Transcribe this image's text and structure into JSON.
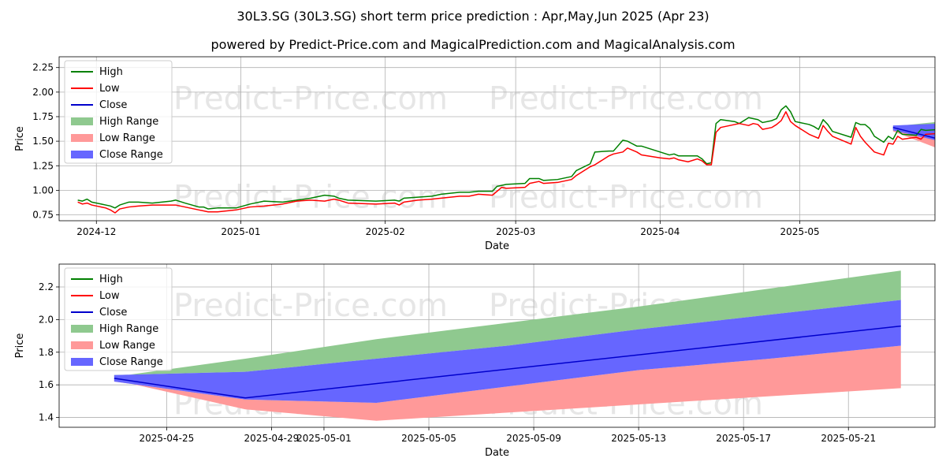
{
  "title_line1": "30L3.SG (30L3.SG) short term price prediction : Apr,May,Jun 2025 (Apr 23)",
  "title_line2": "powered by Predict-Price.com and MagicalPrediction.com and MagicalAnalysis.com",
  "watermark": "Predict-Price.com",
  "colors": {
    "high": "#008000",
    "low": "#ff0000",
    "close": "#0000cc",
    "high_range": "#8fc98f",
    "low_range": "#ff9999",
    "close_range": "#6666ff"
  },
  "chart_data": [
    {
      "type": "line",
      "xlabel": "Date",
      "ylabel": "Price",
      "xlim": [
        "2024-11-23",
        "2025-05-30"
      ],
      "ylim": [
        0.69,
        2.36
      ],
      "grid": true,
      "legend": "top-left",
      "xticks": [
        "2024-12",
        "2025-01",
        "2025-02",
        "2025-03",
        "2025-04",
        "2025-05"
      ],
      "yticks": [
        "0.75",
        "1.00",
        "1.25",
        "1.50",
        "1.75",
        "2.00",
        "2.25"
      ],
      "legend_labels": [
        "High",
        "Low",
        "Close",
        "High Range",
        "Low Range",
        "Close Range"
      ],
      "high": [
        [
          "2024-11-27",
          0.9
        ],
        [
          "2024-11-28",
          0.89
        ],
        [
          "2024-11-29",
          0.91
        ],
        [
          "2024-11-30",
          0.88
        ],
        [
          "2024-12-03",
          0.85
        ],
        [
          "2024-12-04",
          0.84
        ],
        [
          "2024-12-05",
          0.82
        ],
        [
          "2024-12-06",
          0.85
        ],
        [
          "2024-12-08",
          0.88
        ],
        [
          "2024-12-10",
          0.88
        ],
        [
          "2024-12-13",
          0.87
        ],
        [
          "2024-12-17",
          0.89
        ],
        [
          "2024-12-18",
          0.9
        ],
        [
          "2024-12-20",
          0.87
        ],
        [
          "2024-12-23",
          0.83
        ],
        [
          "2024-12-24",
          0.83
        ],
        [
          "2024-12-25",
          0.81
        ],
        [
          "2024-12-27",
          0.82
        ],
        [
          "2024-12-31",
          0.82
        ],
        [
          "2025-01-03",
          0.86
        ],
        [
          "2025-01-06",
          0.89
        ],
        [
          "2025-01-10",
          0.88
        ],
        [
          "2025-01-13",
          0.9
        ],
        [
          "2025-01-16",
          0.92
        ],
        [
          "2025-01-19",
          0.95
        ],
        [
          "2025-01-21",
          0.94
        ],
        [
          "2025-01-22",
          0.92
        ],
        [
          "2025-01-24",
          0.9
        ],
        [
          "2025-01-30",
          0.89
        ],
        [
          "2025-02-03",
          0.9
        ],
        [
          "2025-02-04",
          0.89
        ],
        [
          "2025-02-05",
          0.92
        ],
        [
          "2025-02-08",
          0.93
        ],
        [
          "2025-02-11",
          0.94
        ],
        [
          "2025-02-13",
          0.96
        ],
        [
          "2025-02-17",
          0.98
        ],
        [
          "2025-02-19",
          0.98
        ],
        [
          "2025-02-21",
          0.99
        ],
        [
          "2025-02-24",
          0.99
        ],
        [
          "2025-02-25",
          1.04
        ],
        [
          "2025-02-26",
          1.05
        ],
        [
          "2025-02-27",
          1.06
        ],
        [
          "2025-03-03",
          1.07
        ],
        [
          "2025-03-04",
          1.12
        ],
        [
          "2025-03-06",
          1.12
        ],
        [
          "2025-03-07",
          1.1
        ],
        [
          "2025-03-10",
          1.11
        ],
        [
          "2025-03-13",
          1.14
        ],
        [
          "2025-03-14",
          1.2
        ],
        [
          "2025-03-17",
          1.27
        ],
        [
          "2025-03-18",
          1.39
        ],
        [
          "2025-03-21",
          1.4
        ],
        [
          "2025-03-22",
          1.4
        ],
        [
          "2025-03-24",
          1.51
        ],
        [
          "2025-03-25",
          1.5
        ],
        [
          "2025-03-27",
          1.45
        ],
        [
          "2025-03-28",
          1.45
        ],
        [
          "2025-04-01",
          1.39
        ],
        [
          "2025-04-03",
          1.36
        ],
        [
          "2025-04-04",
          1.37
        ],
        [
          "2025-04-05",
          1.35
        ],
        [
          "2025-04-07",
          1.35
        ],
        [
          "2025-04-09",
          1.35
        ],
        [
          "2025-04-10",
          1.32
        ],
        [
          "2025-04-11",
          1.27
        ],
        [
          "2025-04-12",
          1.28
        ],
        [
          "2025-04-13",
          1.68
        ],
        [
          "2025-04-14",
          1.72
        ],
        [
          "2025-04-17",
          1.7
        ],
        [
          "2025-04-18",
          1.68
        ],
        [
          "2025-04-20",
          1.74
        ],
        [
          "2025-04-21",
          1.73
        ],
        [
          "2025-04-22",
          1.72
        ],
        [
          "2025-04-23",
          1.69
        ],
        [
          "2025-04-25",
          1.71
        ],
        [
          "2025-04-26",
          1.73
        ],
        [
          "2025-04-27",
          1.82
        ],
        [
          "2025-04-28",
          1.86
        ],
        [
          "2025-04-29",
          1.8
        ],
        [
          "2025-04-30",
          1.7
        ],
        [
          "2025-05-03",
          1.67
        ],
        [
          "2025-05-04",
          1.65
        ],
        [
          "2025-05-05",
          1.62
        ],
        [
          "2025-05-06",
          1.72
        ],
        [
          "2025-05-07",
          1.67
        ],
        [
          "2025-05-08",
          1.6
        ],
        [
          "2025-05-12",
          1.54
        ],
        [
          "2025-05-13",
          1.69
        ],
        [
          "2025-05-14",
          1.67
        ],
        [
          "2025-05-15",
          1.67
        ],
        [
          "2025-05-16",
          1.63
        ],
        [
          "2025-05-17",
          1.55
        ],
        [
          "2025-05-19",
          1.49
        ],
        [
          "2025-05-20",
          1.55
        ],
        [
          "2025-05-21",
          1.52
        ],
        [
          "2025-05-22",
          1.61
        ],
        [
          "2025-05-23",
          1.57
        ],
        [
          "2025-05-26",
          1.56
        ],
        [
          "2025-05-27",
          1.62
        ],
        [
          "2025-05-28",
          1.61
        ],
        [
          "2025-05-31",
          1.62
        ],
        [
          "2025-06-03",
          1.64
        ],
        [
          "2025-06-04",
          1.65
        ],
        [
          "2025-06-05",
          1.65
        ]
      ],
      "low": [
        [
          "2024-11-27",
          0.88
        ],
        [
          "2024-11-28",
          0.86
        ],
        [
          "2024-11-29",
          0.87
        ],
        [
          "2024-11-30",
          0.85
        ],
        [
          "2024-12-03",
          0.82
        ],
        [
          "2024-12-04",
          0.8
        ],
        [
          "2024-12-05",
          0.77
        ],
        [
          "2024-12-06",
          0.81
        ],
        [
          "2024-12-08",
          0.83
        ],
        [
          "2024-12-10",
          0.84
        ],
        [
          "2024-12-13",
          0.85
        ],
        [
          "2024-12-17",
          0.85
        ],
        [
          "2024-12-18",
          0.85
        ],
        [
          "2024-12-20",
          0.83
        ],
        [
          "2024-12-23",
          0.8
        ],
        [
          "2024-12-24",
          0.79
        ],
        [
          "2024-12-25",
          0.78
        ],
        [
          "2024-12-27",
          0.78
        ],
        [
          "2024-12-31",
          0.8
        ],
        [
          "2025-01-03",
          0.83
        ],
        [
          "2025-01-06",
          0.84
        ],
        [
          "2025-01-10",
          0.86
        ],
        [
          "2025-01-13",
          0.89
        ],
        [
          "2025-01-16",
          0.9
        ],
        [
          "2025-01-19",
          0.89
        ],
        [
          "2025-01-21",
          0.91
        ],
        [
          "2025-01-22",
          0.9
        ],
        [
          "2025-01-24",
          0.87
        ],
        [
          "2025-01-30",
          0.86
        ],
        [
          "2025-02-03",
          0.87
        ],
        [
          "2025-02-04",
          0.85
        ],
        [
          "2025-02-05",
          0.88
        ],
        [
          "2025-02-08",
          0.9
        ],
        [
          "2025-02-11",
          0.91
        ],
        [
          "2025-02-13",
          0.92
        ],
        [
          "2025-02-17",
          0.94
        ],
        [
          "2025-02-19",
          0.94
        ],
        [
          "2025-02-21",
          0.96
        ],
        [
          "2025-02-24",
          0.95
        ],
        [
          "2025-02-25",
          0.99
        ],
        [
          "2025-02-26",
          1.03
        ],
        [
          "2025-02-27",
          1.02
        ],
        [
          "2025-03-03",
          1.03
        ],
        [
          "2025-03-04",
          1.07
        ],
        [
          "2025-03-06",
          1.09
        ],
        [
          "2025-03-07",
          1.07
        ],
        [
          "2025-03-10",
          1.08
        ],
        [
          "2025-03-13",
          1.11
        ],
        [
          "2025-03-14",
          1.15
        ],
        [
          "2025-03-17",
          1.24
        ],
        [
          "2025-03-18",
          1.26
        ],
        [
          "2025-03-21",
          1.35
        ],
        [
          "2025-03-22",
          1.37
        ],
        [
          "2025-03-24",
          1.39
        ],
        [
          "2025-03-25",
          1.43
        ],
        [
          "2025-03-27",
          1.39
        ],
        [
          "2025-03-28",
          1.36
        ],
        [
          "2025-04-01",
          1.33
        ],
        [
          "2025-04-03",
          1.32
        ],
        [
          "2025-04-04",
          1.33
        ],
        [
          "2025-04-05",
          1.31
        ],
        [
          "2025-04-07",
          1.29
        ],
        [
          "2025-04-09",
          1.32
        ],
        [
          "2025-04-10",
          1.3
        ],
        [
          "2025-04-11",
          1.26
        ],
        [
          "2025-04-12",
          1.26
        ],
        [
          "2025-04-13",
          1.59
        ],
        [
          "2025-04-14",
          1.64
        ],
        [
          "2025-04-17",
          1.67
        ],
        [
          "2025-04-18",
          1.68
        ],
        [
          "2025-04-20",
          1.66
        ],
        [
          "2025-04-21",
          1.68
        ],
        [
          "2025-04-22",
          1.67
        ],
        [
          "2025-04-23",
          1.62
        ],
        [
          "2025-04-25",
          1.64
        ],
        [
          "2025-04-26",
          1.67
        ],
        [
          "2025-04-27",
          1.71
        ],
        [
          "2025-04-28",
          1.8
        ],
        [
          "2025-04-29",
          1.7
        ],
        [
          "2025-04-30",
          1.66
        ],
        [
          "2025-05-03",
          1.57
        ],
        [
          "2025-05-04",
          1.55
        ],
        [
          "2025-05-05",
          1.53
        ],
        [
          "2025-05-06",
          1.66
        ],
        [
          "2025-05-07",
          1.6
        ],
        [
          "2025-05-08",
          1.55
        ],
        [
          "2025-05-12",
          1.47
        ],
        [
          "2025-05-13",
          1.64
        ],
        [
          "2025-05-14",
          1.55
        ],
        [
          "2025-05-15",
          1.49
        ],
        [
          "2025-05-16",
          1.44
        ],
        [
          "2025-05-17",
          1.39
        ],
        [
          "2025-05-19",
          1.36
        ],
        [
          "2025-05-20",
          1.48
        ],
        [
          "2025-05-21",
          1.47
        ],
        [
          "2025-05-22",
          1.55
        ],
        [
          "2025-05-23",
          1.52
        ],
        [
          "2025-05-26",
          1.54
        ],
        [
          "2025-05-27",
          1.52
        ],
        [
          "2025-05-28",
          1.57
        ],
        [
          "2025-05-31",
          1.58
        ],
        [
          "2025-06-03",
          1.56
        ],
        [
          "2025-06-04",
          1.55
        ],
        [
          "2025-06-05",
          1.62
        ]
      ],
      "close": [],
      "forecast_close": [
        [
          "2025-05-21",
          1.64
        ],
        [
          "2025-05-31",
          1.52
        ],
        [
          "2025-06-28",
          1.96
        ]
      ],
      "forecast_high_range": [
        [
          "2025-05-21",
          1.65,
          1.63
        ],
        [
          "2025-05-31",
          1.7,
          1.48
        ],
        [
          "2025-06-28",
          2.3,
          1.85
        ]
      ],
      "forecast_low_range": [
        [
          "2025-05-21",
          1.63,
          1.6
        ],
        [
          "2025-05-31",
          1.5,
          1.42
        ],
        [
          "2025-06-28",
          1.85,
          1.58
        ]
      ],
      "forecast_close_range": [
        [
          "2025-05-21",
          1.66,
          1.61
        ],
        [
          "2025-05-31",
          1.68,
          1.5
        ],
        [
          "2025-06-28",
          2.11,
          1.84
        ]
      ]
    },
    {
      "type": "area",
      "xlabel": "Date",
      "ylabel": "Price",
      "xlim": [
        "2025-04-20.9",
        "2025-05-24.3"
      ],
      "ylim": [
        1.34,
        2.34
      ],
      "grid": true,
      "legend": "top-left",
      "xticks": [
        "2025-04-25",
        "2025-04-29",
        "2025-05-01",
        "2025-05-05",
        "2025-05-09",
        "2025-05-13",
        "2025-05-17",
        "2025-05-21"
      ],
      "yticks": [
        "1.4",
        "1.6",
        "1.8",
        "2.0",
        "2.2"
      ],
      "legend_labels": [
        "High",
        "Low",
        "Close",
        "High Range",
        "Low Range",
        "Close Range"
      ],
      "close": [
        [
          "2025-04-23",
          1.64
        ],
        [
          "2025-04-28",
          1.52
        ],
        [
          "2025-05-23",
          1.96
        ]
      ],
      "high_range": [
        [
          "2025-04-23",
          1.65
        ],
        [
          "2025-04-28",
          1.76
        ],
        [
          "2025-05-03",
          1.88
        ],
        [
          "2025-05-08",
          1.98
        ],
        [
          "2025-05-13",
          2.08
        ],
        [
          "2025-05-18",
          2.19
        ],
        [
          "2025-05-23",
          2.3
        ]
      ],
      "close_range_upper": [
        [
          "2025-04-23",
          1.66
        ],
        [
          "2025-04-28",
          1.68
        ],
        [
          "2025-05-03",
          1.76
        ],
        [
          "2025-05-08",
          1.84
        ],
        [
          "2025-05-13",
          1.94
        ],
        [
          "2025-05-18",
          2.03
        ],
        [
          "2025-05-23",
          2.12
        ]
      ],
      "close_range_lower": [
        [
          "2025-04-23",
          1.62
        ],
        [
          "2025-04-28",
          1.51
        ],
        [
          "2025-05-03",
          1.49
        ],
        [
          "2025-05-08",
          1.59
        ],
        [
          "2025-05-13",
          1.69
        ],
        [
          "2025-05-18",
          1.76
        ],
        [
          "2025-05-23",
          1.84
        ]
      ],
      "low_range": [
        [
          "2025-04-23",
          1.63
        ],
        [
          "2025-04-28",
          1.45
        ],
        [
          "2025-05-03",
          1.38
        ],
        [
          "2025-05-08",
          1.43
        ],
        [
          "2025-05-13",
          1.48
        ],
        [
          "2025-05-18",
          1.53
        ],
        [
          "2025-05-23",
          1.58
        ]
      ]
    }
  ]
}
